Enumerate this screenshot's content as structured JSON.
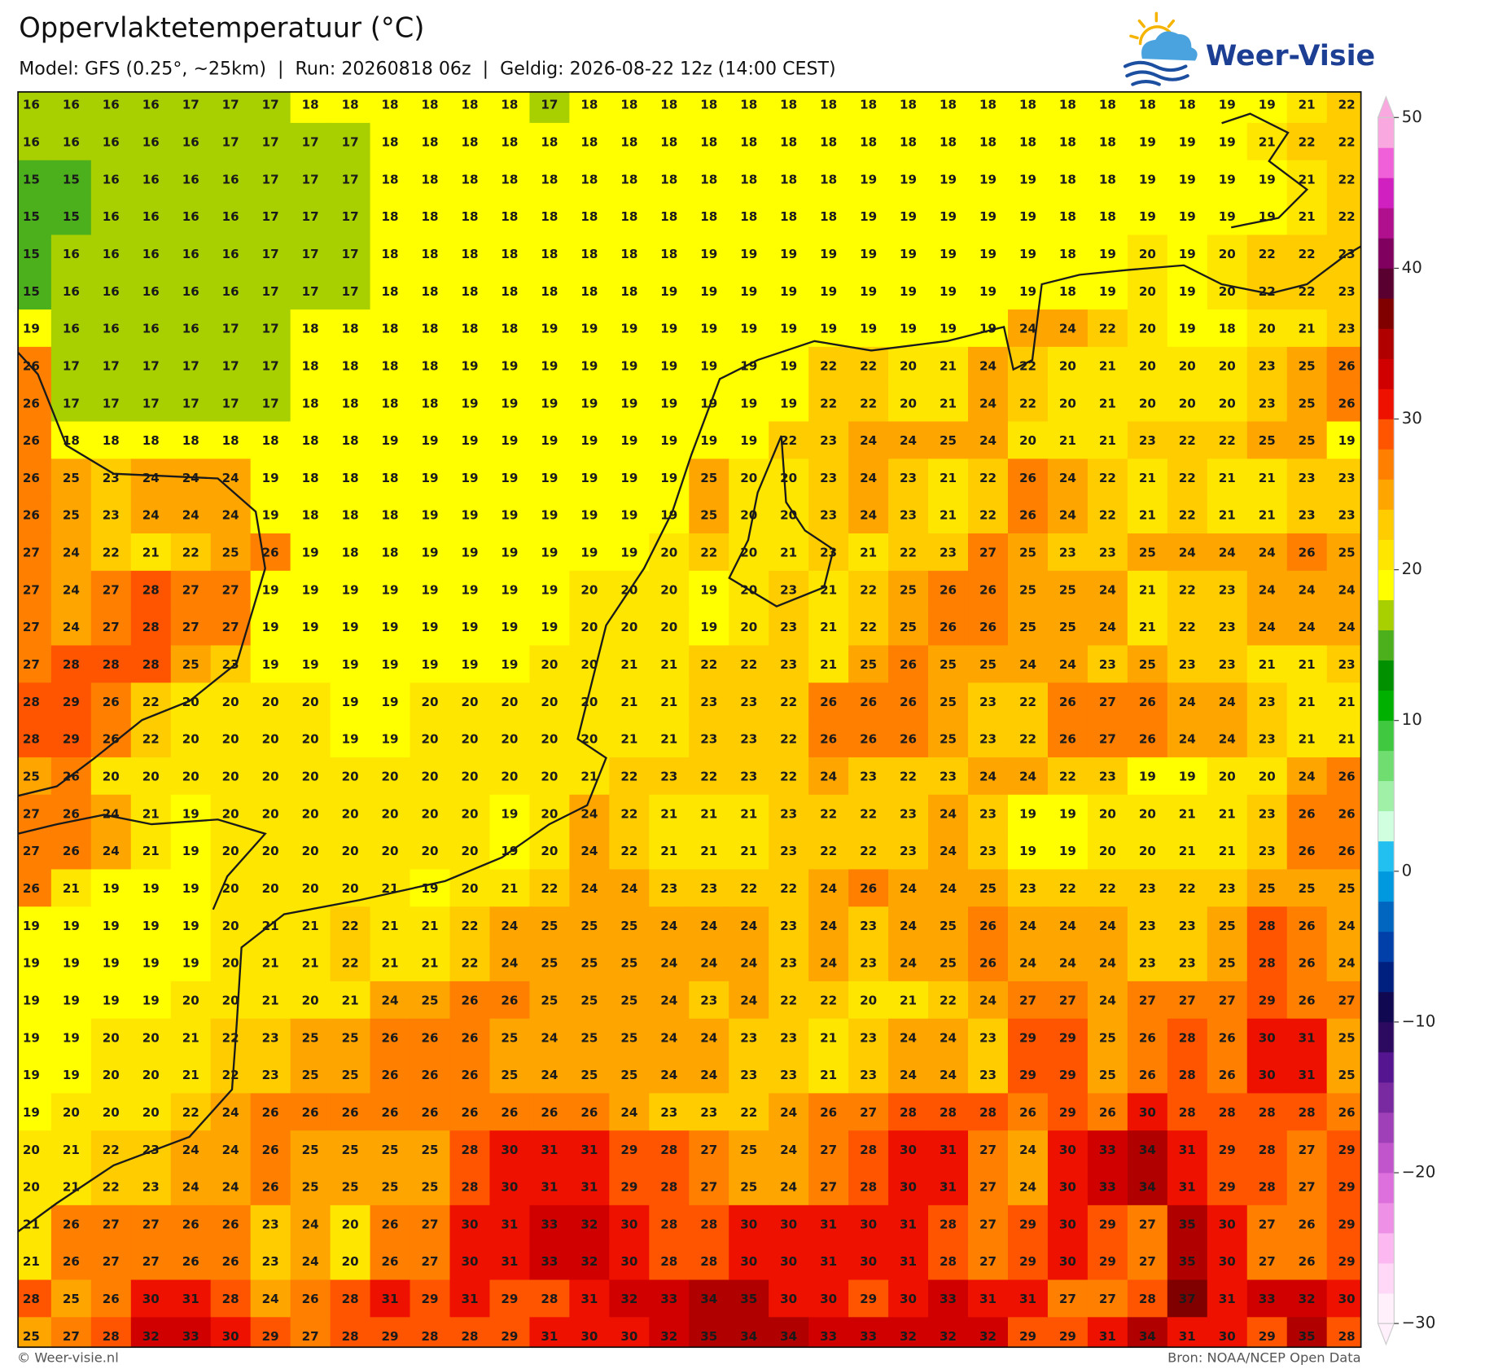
{
  "header": {
    "title": "Oppervlaktetemperatuur (°C)",
    "subtitle": "Model: GFS (0.25°, ~25km)  |  Run: 20260818 06z  |  Geldig: 2026-08-22 12z (14:00 CEST)"
  },
  "logo": "Weer-Visie",
  "map": {
    "type": "grid",
    "rows": [
      [
        16,
        16,
        16,
        16,
        17,
        17,
        17,
        18,
        18,
        18,
        18,
        18,
        18,
        17,
        18,
        18,
        18,
        18,
        18,
        18,
        18,
        18,
        18,
        18,
        18,
        18,
        18,
        18,
        18,
        18,
        19,
        19,
        21,
        22
      ],
      [
        16,
        16,
        16,
        16,
        16,
        17,
        17,
        17,
        17,
        18,
        18,
        18,
        18,
        18,
        18,
        18,
        18,
        18,
        18,
        18,
        18,
        18,
        18,
        18,
        18,
        18,
        18,
        18,
        19,
        19,
        19,
        21,
        22,
        22
      ],
      [
        15,
        15,
        16,
        16,
        16,
        16,
        17,
        17,
        17,
        18,
        18,
        18,
        18,
        18,
        18,
        18,
        18,
        18,
        18,
        18,
        18,
        19,
        19,
        19,
        19,
        19,
        18,
        18,
        19,
        19,
        19,
        19,
        21,
        22
      ],
      [
        15,
        15,
        16,
        16,
        16,
        16,
        17,
        17,
        17,
        18,
        18,
        18,
        18,
        18,
        18,
        18,
        18,
        18,
        18,
        18,
        18,
        19,
        19,
        19,
        19,
        19,
        18,
        18,
        19,
        19,
        19,
        19,
        21,
        22
      ],
      [
        15,
        16,
        16,
        16,
        16,
        16,
        17,
        17,
        17,
        18,
        18,
        18,
        18,
        18,
        18,
        18,
        18,
        19,
        19,
        19,
        19,
        19,
        19,
        19,
        19,
        19,
        18,
        19,
        20,
        19,
        20,
        22,
        22,
        23
      ],
      [
        15,
        16,
        16,
        16,
        16,
        16,
        17,
        17,
        17,
        18,
        18,
        18,
        18,
        18,
        18,
        18,
        19,
        19,
        19,
        19,
        19,
        19,
        19,
        19,
        19,
        19,
        18,
        19,
        20,
        19,
        20,
        22,
        22,
        23
      ],
      [
        19,
        16,
        16,
        16,
        16,
        17,
        17,
        18,
        18,
        18,
        18,
        18,
        18,
        19,
        19,
        19,
        19,
        19,
        19,
        19,
        19,
        19,
        19,
        19,
        19,
        24,
        24,
        22,
        20,
        19,
        18,
        20,
        21,
        23
      ],
      [
        26,
        17,
        17,
        17,
        17,
        17,
        17,
        18,
        18,
        18,
        18,
        19,
        19,
        19,
        19,
        19,
        19,
        19,
        19,
        19,
        22,
        22,
        20,
        21,
        24,
        22,
        20,
        21,
        20,
        20,
        20,
        23,
        25,
        26
      ],
      [
        26,
        17,
        17,
        17,
        17,
        17,
        17,
        18,
        18,
        18,
        18,
        19,
        19,
        19,
        19,
        19,
        19,
        19,
        19,
        19,
        22,
        22,
        20,
        21,
        24,
        22,
        20,
        21,
        20,
        20,
        20,
        23,
        25,
        26
      ],
      [
        26,
        18,
        18,
        18,
        18,
        18,
        18,
        18,
        18,
        19,
        19,
        19,
        19,
        19,
        19,
        19,
        19,
        19,
        19,
        22,
        23,
        24,
        24,
        25,
        24,
        20,
        21,
        21,
        23,
        22,
        22,
        25,
        25,
        19
      ],
      [
        26,
        25,
        23,
        24,
        24,
        24,
        19,
        18,
        18,
        18,
        19,
        19,
        19,
        19,
        19,
        19,
        19,
        25,
        20,
        20,
        23,
        24,
        23,
        21,
        22,
        26,
        24,
        22,
        21,
        22,
        21,
        21,
        23,
        23
      ],
      [
        26,
        25,
        23,
        24,
        24,
        24,
        19,
        18,
        18,
        18,
        19,
        19,
        19,
        19,
        19,
        19,
        19,
        25,
        20,
        20,
        23,
        24,
        23,
        21,
        22,
        26,
        24,
        22,
        21,
        22,
        21,
        21,
        23,
        23
      ],
      [
        27,
        24,
        22,
        21,
        22,
        25,
        26,
        19,
        18,
        18,
        19,
        19,
        19,
        19,
        19,
        19,
        20,
        22,
        20,
        21,
        23,
        21,
        22,
        23,
        27,
        25,
        23,
        23,
        25,
        24,
        24,
        24,
        26,
        25
      ],
      [
        27,
        24,
        27,
        28,
        27,
        27,
        19,
        19,
        19,
        19,
        19,
        19,
        19,
        19,
        20,
        20,
        20,
        19,
        20,
        23,
        21,
        22,
        25,
        26,
        26,
        25,
        25,
        24,
        21,
        22,
        23,
        24,
        24,
        24
      ],
      [
        27,
        24,
        27,
        28,
        27,
        27,
        19,
        19,
        19,
        19,
        19,
        19,
        19,
        19,
        20,
        20,
        20,
        19,
        20,
        23,
        21,
        22,
        25,
        26,
        26,
        25,
        25,
        24,
        21,
        22,
        23,
        24,
        24,
        24
      ],
      [
        27,
        28,
        28,
        28,
        25,
        23,
        19,
        19,
        19,
        19,
        19,
        19,
        19,
        20,
        20,
        21,
        21,
        22,
        22,
        23,
        21,
        25,
        26,
        25,
        25,
        24,
        24,
        23,
        25,
        23,
        23,
        21,
        21,
        23
      ],
      [
        28,
        29,
        26,
        22,
        20,
        20,
        20,
        20,
        19,
        19,
        20,
        20,
        20,
        20,
        20,
        21,
        21,
        23,
        23,
        22,
        26,
        26,
        26,
        25,
        23,
        22,
        26,
        27,
        26,
        24,
        24,
        23,
        21,
        21
      ],
      [
        28,
        29,
        26,
        22,
        20,
        20,
        20,
        20,
        19,
        19,
        20,
        20,
        20,
        20,
        20,
        21,
        21,
        23,
        23,
        22,
        26,
        26,
        26,
        25,
        23,
        22,
        26,
        27,
        26,
        24,
        24,
        23,
        21,
        21
      ],
      [
        25,
        26,
        20,
        20,
        20,
        20,
        20,
        20,
        20,
        20,
        20,
        20,
        20,
        20,
        21,
        22,
        23,
        22,
        23,
        22,
        24,
        23,
        22,
        23,
        24,
        24,
        22,
        23,
        19,
        19,
        20,
        20,
        24,
        26
      ],
      [
        27,
        26,
        24,
        21,
        19,
        20,
        20,
        20,
        20,
        20,
        20,
        20,
        19,
        20,
        24,
        22,
        21,
        21,
        21,
        23,
        22,
        22,
        23,
        24,
        23,
        19,
        19,
        20,
        20,
        21,
        21,
        23,
        26,
        26
      ],
      [
        27,
        26,
        24,
        21,
        19,
        20,
        20,
        20,
        20,
        20,
        20,
        20,
        19,
        20,
        24,
        22,
        21,
        21,
        21,
        23,
        22,
        22,
        23,
        24,
        23,
        19,
        19,
        20,
        20,
        21,
        21,
        23,
        26,
        26
      ],
      [
        26,
        21,
        19,
        19,
        19,
        20,
        20,
        20,
        20,
        21,
        19,
        20,
        21,
        22,
        24,
        24,
        23,
        23,
        22,
        22,
        24,
        26,
        24,
        24,
        25,
        23,
        22,
        22,
        23,
        22,
        23,
        25,
        25,
        25
      ],
      [
        19,
        19,
        19,
        19,
        19,
        20,
        21,
        21,
        22,
        21,
        21,
        22,
        24,
        25,
        25,
        25,
        24,
        24,
        24,
        23,
        24,
        23,
        24,
        25,
        26,
        24,
        24,
        24,
        23,
        23,
        25,
        28,
        26,
        24
      ],
      [
        19,
        19,
        19,
        19,
        19,
        20,
        21,
        21,
        22,
        21,
        21,
        22,
        24,
        25,
        25,
        25,
        24,
        24,
        24,
        23,
        24,
        23,
        24,
        25,
        26,
        24,
        24,
        24,
        23,
        23,
        25,
        28,
        26,
        24
      ],
      [
        19,
        19,
        19,
        19,
        20,
        20,
        21,
        20,
        21,
        24,
        25,
        26,
        26,
        25,
        25,
        25,
        24,
        23,
        24,
        22,
        22,
        20,
        21,
        22,
        24,
        27,
        27,
        24,
        27,
        27,
        27,
        29,
        26,
        27
      ],
      [
        19,
        19,
        20,
        20,
        21,
        22,
        23,
        25,
        25,
        26,
        26,
        26,
        25,
        24,
        25,
        25,
        24,
        24,
        23,
        23,
        21,
        23,
        24,
        24,
        23,
        29,
        29,
        25,
        26,
        28,
        26,
        30,
        31,
        25
      ],
      [
        19,
        19,
        20,
        20,
        21,
        22,
        23,
        25,
        25,
        26,
        26,
        26,
        25,
        24,
        25,
        25,
        24,
        24,
        23,
        23,
        21,
        23,
        24,
        24,
        23,
        29,
        29,
        25,
        26,
        28,
        26,
        30,
        31,
        25
      ],
      [
        19,
        20,
        20,
        20,
        22,
        24,
        26,
        26,
        26,
        26,
        26,
        26,
        26,
        26,
        26,
        24,
        23,
        23,
        22,
        24,
        26,
        27,
        28,
        28,
        28,
        26,
        29,
        26,
        30,
        28,
        28,
        28,
        28,
        26
      ],
      [
        20,
        21,
        22,
        23,
        24,
        24,
        26,
        25,
        25,
        25,
        25,
        28,
        30,
        31,
        31,
        29,
        28,
        27,
        25,
        24,
        27,
        28,
        30,
        31,
        27,
        24,
        30,
        33,
        34,
        31,
        29,
        28,
        27,
        29
      ],
      [
        20,
        21,
        22,
        23,
        24,
        24,
        26,
        25,
        25,
        25,
        25,
        28,
        30,
        31,
        31,
        29,
        28,
        27,
        25,
        24,
        27,
        28,
        30,
        31,
        27,
        24,
        30,
        33,
        34,
        31,
        29,
        28,
        27,
        29
      ],
      [
        21,
        26,
        27,
        27,
        26,
        26,
        23,
        24,
        20,
        26,
        27,
        30,
        31,
        33,
        32,
        30,
        28,
        28,
        30,
        30,
        31,
        30,
        31,
        28,
        27,
        29,
        30,
        29,
        27,
        35,
        30,
        27,
        26,
        29
      ],
      [
        21,
        26,
        27,
        27,
        26,
        26,
        23,
        24,
        20,
        26,
        27,
        30,
        31,
        33,
        32,
        30,
        28,
        28,
        30,
        30,
        31,
        30,
        31,
        28,
        27,
        29,
        30,
        29,
        27,
        35,
        30,
        27,
        26,
        29
      ],
      [
        28,
        25,
        26,
        30,
        31,
        28,
        24,
        26,
        28,
        31,
        29,
        31,
        29,
        28,
        31,
        32,
        33,
        34,
        35,
        30,
        30,
        29,
        30,
        33,
        31,
        31,
        27,
        27,
        28,
        37,
        31,
        33,
        32,
        30
      ],
      [
        25,
        27,
        28,
        32,
        33,
        30,
        29,
        27,
        28,
        29,
        28,
        28,
        29,
        31,
        30,
        30,
        32,
        35,
        34,
        34,
        33,
        33,
        32,
        32,
        32,
        29,
        29,
        31,
        34,
        31,
        30,
        29,
        35,
        28
      ]
    ]
  },
  "colorbar": {
    "ylim": [
      -30,
      50
    ],
    "yticks": [
      50,
      40,
      30,
      20,
      10,
      0,
      {
        "value": -10,
        "label": "−10"
      },
      {
        "value": -20,
        "label": "−20"
      },
      {
        "value": -30,
        "label": "−30"
      }
    ],
    "colors": [
      "#fff0fc",
      "#ffd8f8",
      "#fcb8f0",
      "#ee90e6",
      "#dd70dd",
      "#c055cc",
      "#a040b8",
      "#7a2aa0",
      "#561590",
      "#2c0a60",
      "#100850",
      "#002080",
      "#0040a8",
      "#0066c0",
      "#0099e0",
      "#22c0f0",
      "#d0ffe0",
      "#a0f0a8",
      "#70dd70",
      "#40c840",
      "#00b000",
      "#009000",
      "#4caf1c",
      "#a8d000",
      "#ffff00",
      "#ffe600",
      "#ffcc00",
      "#ffa500",
      "#ff7f00",
      "#ff5500",
      "#ee1100",
      "#d00000",
      "#b00000",
      "#800000",
      "#5a0030",
      "#800060",
      "#b0108e",
      "#d020c0",
      "#f060d8",
      "#faa8e0"
    ]
  },
  "footer": {
    "left": "© Weer-visie.nl",
    "right": "Bron: NOAA/NCEP Open Data"
  }
}
